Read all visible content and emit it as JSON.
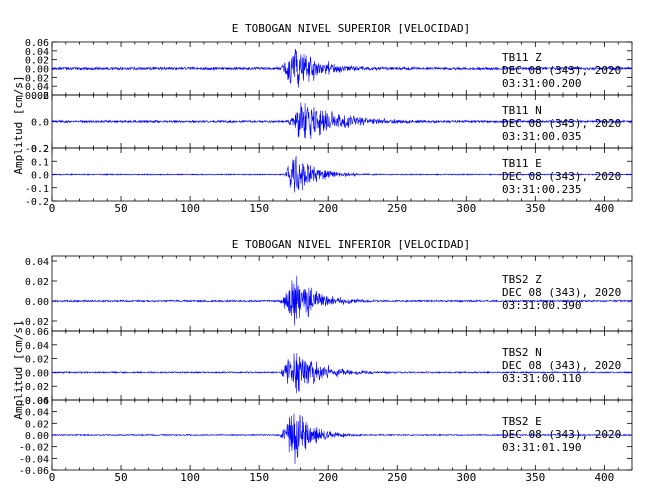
{
  "chart_data": [
    {
      "type": "line",
      "title": "E TOBOGAN NIVEL SUPERIOR [VELOCIDAD]",
      "ylabel": "Amplitud [cm/s]",
      "xlim": [
        0,
        420
      ],
      "x_ticks": [
        "0",
        "50",
        "100",
        "150",
        "200",
        "250",
        "300",
        "350",
        "400"
      ],
      "traces": [
        {
          "station": "TB11",
          "component": "Z",
          "date": "DEC 08 (343), 2020",
          "time": "03:31:00.200",
          "ylim": [
            -0.06,
            0.06
          ],
          "y_ticks": [
            "0.06",
            "0.04",
            "0.02",
            "0.00",
            "-0.02",
            "-0.04",
            "-0.06"
          ],
          "waveform": {
            "onset": 165,
            "peak_time": 176,
            "peak_amplitude": 0.058,
            "decay": 18,
            "noise": 0.003,
            "freq": 1.7
          }
        },
        {
          "station": "TB11",
          "component": "N",
          "date": "DEC 08 (343), 2020",
          "time": "03:31:00.035",
          "ylim": [
            -0.2,
            0.2
          ],
          "y_ticks": [
            "0.2",
            "0.0",
            "-0.2"
          ],
          "waveform": {
            "onset": 170,
            "peak_time": 182,
            "peak_amplitude": 0.19,
            "decay": 24,
            "noise": 0.008,
            "freq": 1.4
          }
        },
        {
          "station": "TB11",
          "component": "E",
          "date": "DEC 08 (343), 2020",
          "time": "03:31:00.235",
          "ylim": [
            -0.2,
            0.2
          ],
          "y_ticks": [
            "0.2",
            "0.1",
            "0.0",
            "-0.1",
            "-0.2"
          ],
          "waveform": {
            "onset": 168,
            "peak_time": 176,
            "peak_amplitude": 0.19,
            "decay": 14,
            "noise": 0.004,
            "freq": 1.5
          }
        }
      ]
    },
    {
      "type": "line",
      "title": "E TOBOGAN NIVEL INFERIOR [VELOCIDAD]",
      "ylabel": "Amplitud [cm/s]",
      "xlim": [
        0,
        420
      ],
      "x_ticks": [
        "0",
        "50",
        "100",
        "150",
        "200",
        "250",
        "300",
        "350",
        "400"
      ],
      "traces": [
        {
          "station": "TBS2",
          "component": "Z",
          "date": "DEC 08 (343), 2020",
          "time": "03:31:00.390",
          "ylim": [
            -0.03,
            0.045
          ],
          "y_ticks": [
            "0.04",
            "0.02",
            "0.00",
            "-0.02"
          ],
          "waveform": {
            "onset": 165,
            "peak_time": 177,
            "peak_amplitude": 0.03,
            "decay": 15,
            "noise": 0.0008,
            "freq": 1.6
          }
        },
        {
          "station": "TBS2",
          "component": "N",
          "date": "DEC 08 (343), 2020",
          "time": "03:31:00.110",
          "ylim": [
            -0.04,
            0.06
          ],
          "y_ticks": [
            "0.06",
            "0.04",
            "0.02",
            "0.00",
            "-0.02",
            "-0.04"
          ],
          "waveform": {
            "onset": 165,
            "peak_time": 176,
            "peak_amplitude": 0.04,
            "decay": 18,
            "noise": 0.001,
            "freq": 1.5
          }
        },
        {
          "station": "TBS2",
          "component": "E",
          "date": "DEC 08 (343), 2020",
          "time": "03:31:01.190",
          "ylim": [
            -0.06,
            0.06
          ],
          "y_ticks": [
            "0.06",
            "0.04",
            "0.02",
            "0.00",
            "-0.02",
            "-0.04",
            "-0.06"
          ],
          "waveform": {
            "onset": 165,
            "peak_time": 176,
            "peak_amplitude": 0.055,
            "decay": 12,
            "noise": 0.001,
            "freq": 1.6
          }
        }
      ]
    }
  ],
  "colors": {
    "trace": "#0000ff",
    "axes": "#000000",
    "background": "#ffffff"
  }
}
